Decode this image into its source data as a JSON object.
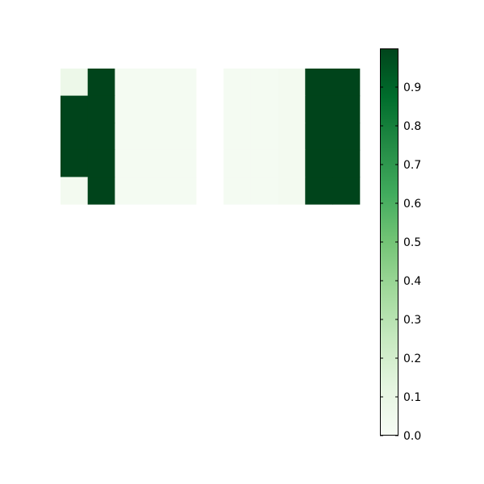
{
  "chart_data": {
    "type": "heatmap",
    "title": "",
    "xlabel": "",
    "ylabel": "",
    "grid": false,
    "colormap": "Greens",
    "colormap_stops": [
      "#f7fcf5",
      "#e5f5e0",
      "#c7e9c0",
      "#a1d99b",
      "#74c476",
      "#41ab5d",
      "#238b45",
      "#006d2c",
      "#00441b"
    ],
    "missing_color": "#ffffff",
    "rows": 5,
    "cols": 11,
    "values": [
      [
        0.07,
        1.0,
        0.02,
        0.02,
        0.02,
        null,
        0.02,
        0.02,
        0.03,
        1.0,
        1.0
      ],
      [
        1.0,
        1.0,
        0.02,
        0.02,
        0.02,
        null,
        0.02,
        0.02,
        0.03,
        1.0,
        1.0
      ],
      [
        1.0,
        1.0,
        0.02,
        0.02,
        0.02,
        null,
        0.02,
        0.02,
        0.03,
        1.0,
        1.0
      ],
      [
        1.0,
        1.0,
        0.02,
        0.02,
        0.02,
        null,
        0.02,
        0.02,
        0.03,
        1.0,
        1.0
      ],
      [
        0.03,
        1.0,
        0.02,
        0.02,
        0.02,
        null,
        0.02,
        0.02,
        0.03,
        1.0,
        1.0
      ]
    ],
    "colorbar": {
      "vmin": 0.0,
      "vmax": 1.0,
      "ticks": [
        0.0,
        0.1,
        0.2,
        0.3,
        0.4,
        0.5,
        0.6,
        0.7,
        0.8,
        0.9
      ],
      "tick_labels": [
        "0.0",
        "0.1",
        "0.2",
        "0.3",
        "0.4",
        "0.5",
        "0.6",
        "0.7",
        "0.8",
        "0.9"
      ]
    }
  }
}
